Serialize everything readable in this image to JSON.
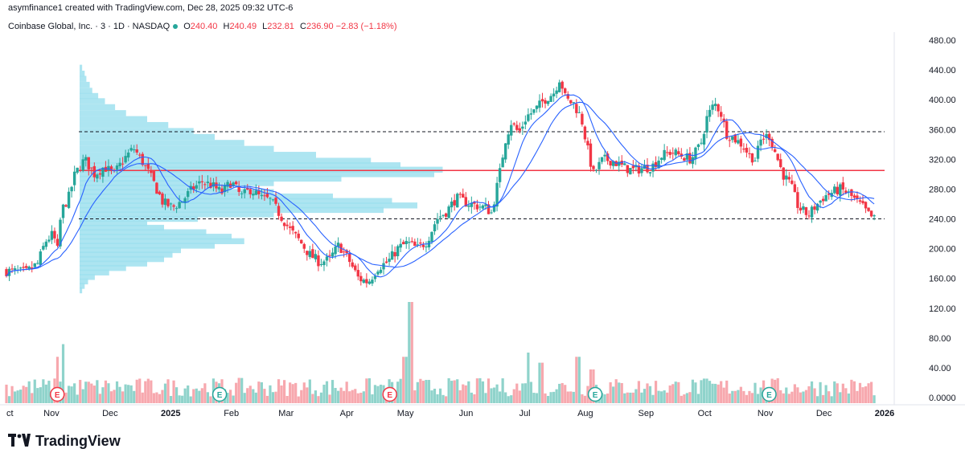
{
  "header": {
    "attribution": "asymfinance1 created with TradingView.com, Dec 28, 2025 09:32 UTC-6"
  },
  "symbol": {
    "name": "Coinbase Global, Inc. · 3 · 1D · NASDAQ",
    "o_label": "O",
    "o_value": "240.40",
    "h_label": "H",
    "h_value": "240.49",
    "l_label": "L",
    "l_value": "232.81",
    "c_label": "C",
    "c_value": "236.90",
    "change": "−2.83 (−1.18%)"
  },
  "brand": {
    "name": "TradingView"
  },
  "colors": {
    "up": "#26a69a",
    "down": "#f23645",
    "ma": "#2962ff",
    "volume_profile": "#9fe1ee",
    "poc_line": "#f23645",
    "dashed": "#131722",
    "vol_up": "#8fd3cb",
    "vol_down": "#f7a8ae"
  },
  "chart_data": {
    "type": "candlestick",
    "y_axis": {
      "min": 0,
      "max": 480,
      "ticks": [
        "480.00",
        "440.00",
        "400.00",
        "360.00",
        "320.00",
        "280.00",
        "240.00",
        "200.00",
        "160.00",
        "120.00",
        "80.00",
        "40.00",
        "0.0000"
      ],
      "tick_values": [
        480,
        440,
        400,
        360,
        320,
        280,
        240,
        200,
        160,
        120,
        80,
        40,
        0
      ]
    },
    "x_axis": {
      "labels": [
        "ct",
        "Nov",
        "Dec",
        "2025",
        "Feb",
        "Mar",
        "Apr",
        "May",
        "Jun",
        "Jul",
        "Aug",
        "Sep",
        "Oct",
        "Nov",
        "Dec",
        "2026"
      ],
      "label_days": [
        0,
        23,
        53,
        84,
        115,
        143,
        174,
        204,
        235,
        265,
        296,
        327,
        357,
        388,
        418,
        449
      ],
      "bold": [
        "2025",
        "2026"
      ]
    },
    "horizontal_lines": [
      {
        "value": 357,
        "style": "dashed"
      },
      {
        "value": 305,
        "style": "solid"
      },
      {
        "value": 240,
        "style": "dashed"
      }
    ],
    "earnings_markers": {
      "label": "E",
      "days": [
        26,
        109,
        196,
        301,
        390
      ],
      "colors": [
        "down",
        "up",
        "down",
        "up",
        "up"
      ]
    },
    "price_path": [
      [
        0,
        170
      ],
      [
        10,
        168
      ],
      [
        16,
        180
      ],
      [
        20,
        210
      ],
      [
        24,
        220
      ],
      [
        26,
        195
      ],
      [
        28,
        250
      ],
      [
        32,
        270
      ],
      [
        35,
        300
      ],
      [
        40,
        320
      ],
      [
        45,
        300
      ],
      [
        50,
        310
      ],
      [
        55,
        300
      ],
      [
        60,
        320
      ],
      [
        65,
        335
      ],
      [
        70,
        315
      ],
      [
        75,
        290
      ],
      [
        80,
        262
      ],
      [
        85,
        255
      ],
      [
        90,
        265
      ],
      [
        95,
        280
      ],
      [
        100,
        290
      ],
      [
        105,
        285
      ],
      [
        110,
        275
      ],
      [
        115,
        290
      ],
      [
        120,
        270
      ],
      [
        125,
        280
      ],
      [
        130,
        268
      ],
      [
        135,
        265
      ],
      [
        140,
        245
      ],
      [
        145,
        225
      ],
      [
        150,
        210
      ],
      [
        155,
        192
      ],
      [
        160,
        182
      ],
      [
        165,
        185
      ],
      [
        170,
        205
      ],
      [
        175,
        185
      ],
      [
        180,
        160
      ],
      [
        185,
        155
      ],
      [
        190,
        175
      ],
      [
        195,
        182
      ],
      [
        200,
        200
      ],
      [
        205,
        208
      ],
      [
        210,
        200
      ],
      [
        215,
        210
      ],
      [
        220,
        240
      ],
      [
        225,
        250
      ],
      [
        230,
        268
      ],
      [
        235,
        262
      ],
      [
        240,
        258
      ],
      [
        245,
        255
      ],
      [
        248,
        248
      ],
      [
        252,
        298
      ],
      [
        255,
        345
      ],
      [
        258,
        370
      ],
      [
        262,
        355
      ],
      [
        266,
        378
      ],
      [
        270,
        385
      ],
      [
        275,
        400
      ],
      [
        280,
        410
      ],
      [
        283,
        430
      ],
      [
        286,
        400
      ],
      [
        290,
        395
      ],
      [
        294,
        375
      ],
      [
        297,
        335
      ],
      [
        300,
        300
      ],
      [
        305,
        320
      ],
      [
        310,
        318
      ],
      [
        315,
        310
      ],
      [
        320,
        305
      ],
      [
        325,
        308
      ],
      [
        330,
        310
      ],
      [
        335,
        325
      ],
      [
        340,
        330
      ],
      [
        345,
        325
      ],
      [
        350,
        320
      ],
      [
        355,
        340
      ],
      [
        358,
        375
      ],
      [
        362,
        395
      ],
      [
        365,
        385
      ],
      [
        368,
        355
      ],
      [
        372,
        348
      ],
      [
        376,
        340
      ],
      [
        380,
        325
      ],
      [
        383,
        320
      ],
      [
        386,
        348
      ],
      [
        390,
        352
      ],
      [
        393,
        330
      ],
      [
        397,
        300
      ],
      [
        401,
        285
      ],
      [
        405,
        255
      ],
      [
        410,
        245
      ],
      [
        414,
        258
      ],
      [
        418,
        270
      ],
      [
        422,
        275
      ],
      [
        426,
        280
      ],
      [
        430,
        275
      ],
      [
        434,
        265
      ],
      [
        438,
        255
      ],
      [
        441,
        245
      ],
      [
        445,
        237
      ]
    ],
    "volume_profile": [
      [
        443,
        3
      ],
      [
        435,
        6
      ],
      [
        428,
        8
      ],
      [
        420,
        12
      ],
      [
        412,
        15
      ],
      [
        405,
        22
      ],
      [
        398,
        30
      ],
      [
        390,
        42
      ],
      [
        382,
        55
      ],
      [
        374,
        80
      ],
      [
        366,
        105
      ],
      [
        358,
        135
      ],
      [
        350,
        160
      ],
      [
        342,
        195
      ],
      [
        334,
        230
      ],
      [
        326,
        280
      ],
      [
        318,
        345
      ],
      [
        312,
        380
      ],
      [
        306,
        430
      ],
      [
        300,
        420
      ],
      [
        294,
        310
      ],
      [
        288,
        230
      ],
      [
        282,
        180
      ],
      [
        276,
        230
      ],
      [
        270,
        300
      ],
      [
        264,
        370
      ],
      [
        258,
        400
      ],
      [
        252,
        360
      ],
      [
        246,
        230
      ],
      [
        240,
        140
      ],
      [
        234,
        80
      ],
      [
        228,
        100
      ],
      [
        222,
        150
      ],
      [
        216,
        180
      ],
      [
        210,
        195
      ],
      [
        204,
        160
      ],
      [
        198,
        120
      ],
      [
        192,
        110
      ],
      [
        186,
        100
      ],
      [
        180,
        80
      ],
      [
        174,
        55
      ],
      [
        168,
        35
      ],
      [
        162,
        18
      ],
      [
        156,
        10
      ],
      [
        150,
        6
      ],
      [
        144,
        3
      ]
    ],
    "volume_spikes": [
      [
        26,
        55
      ],
      [
        29,
        70
      ],
      [
        204,
        55
      ],
      [
        207,
        120
      ],
      [
        267,
        60
      ],
      [
        273,
        48
      ],
      [
        292,
        55
      ],
      [
        299,
        40
      ]
    ]
  }
}
